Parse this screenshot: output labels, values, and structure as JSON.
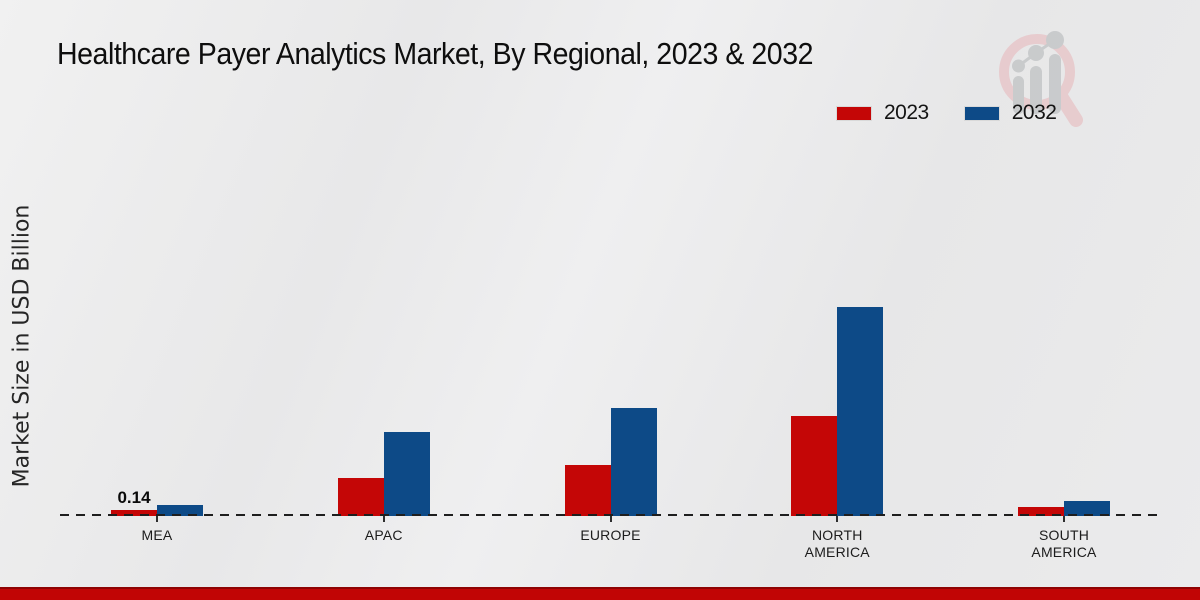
{
  "chart_data": {
    "type": "bar",
    "title": "Healthcare Payer Analytics Market, By Regional, 2023 & 2032",
    "ylabel": "Market Size in USD Billion",
    "xlabel": "",
    "categories": [
      "MEA",
      "APAC",
      "EUROPE",
      "NORTH AMERICA",
      "SOUTH AMERICA"
    ],
    "series": [
      {
        "name": "2023",
        "color": "#c40606",
        "values": [
          0.14,
          0.89,
          1.19,
          2.33,
          0.21
        ]
      },
      {
        "name": "2032",
        "color": "#0d4a87",
        "values": [
          0.26,
          1.96,
          2.52,
          4.85,
          0.35
        ]
      }
    ],
    "annotations": [
      {
        "cat_index": 0,
        "series_index": 0,
        "text": "0.14"
      }
    ],
    "ylim": [
      0,
      5.2
    ],
    "grid": false,
    "legend_position": "top-right",
    "baseline_style": "dashed"
  },
  "watermark": {
    "icon": "magnifier-growth-chart-logo",
    "ring_color": "#e7c9cc",
    "bars_color": "#c6c8ca"
  },
  "footer": {
    "bar_color": "#c10505",
    "edge_color": "#8f0303"
  }
}
